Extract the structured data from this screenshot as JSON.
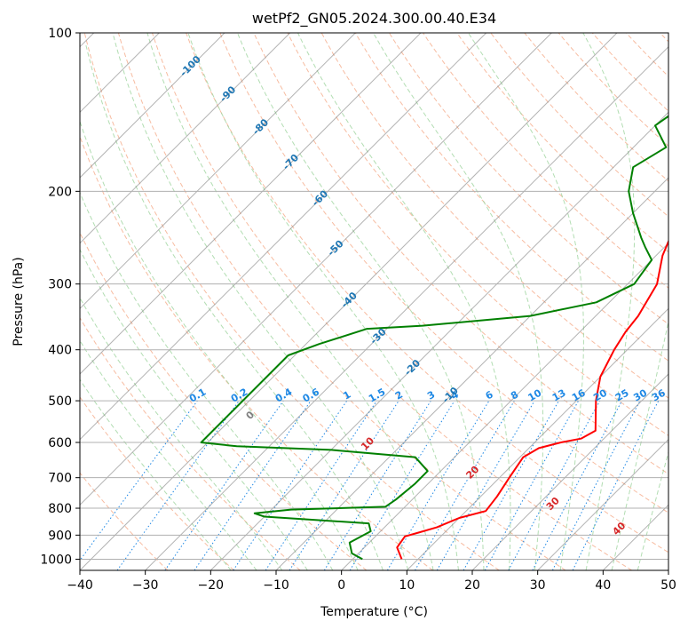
{
  "chart_data": {
    "type": "line",
    "subtype": "skew-T log-P diagram",
    "title": "wetPf2_GN05.2024.300.00.40.E34",
    "xlabel": "Temperature (°C)",
    "ylabel": "Pressure (hPa)",
    "xlim": [
      -40,
      50
    ],
    "ylim": [
      1050,
      100
    ],
    "y_scale": "log",
    "grid": true,
    "x_ticks": [
      "−40",
      "−30",
      "−20",
      "−10",
      "0",
      "10",
      "20",
      "30",
      "40",
      "50"
    ],
    "y_ticks": [
      "100",
      "200",
      "300",
      "400",
      "500",
      "600",
      "700",
      "800",
      "900",
      "1000"
    ],
    "series": [
      {
        "color": "#ff0000",
        "points": [
          [
            7.5,
            1000
          ],
          [
            5,
            950
          ],
          [
            4.5,
            905
          ],
          [
            6,
            890
          ],
          [
            8,
            870
          ],
          [
            10,
            835
          ],
          [
            13,
            810
          ],
          [
            12.5,
            760
          ],
          [
            11.5,
            700
          ],
          [
            10.5,
            640
          ],
          [
            11.5,
            615
          ],
          [
            14,
            600
          ],
          [
            16.5,
            590
          ],
          [
            17.5,
            570
          ],
          [
            13,
            500
          ],
          [
            10,
            450
          ],
          [
            8,
            400
          ],
          [
            7,
            370
          ],
          [
            6.5,
            345
          ],
          [
            4.5,
            300
          ],
          [
            1,
            265
          ],
          [
            -1,
            240
          ],
          [
            -3,
            225
          ],
          [
            -2,
            200
          ],
          [
            0,
            185
          ],
          [
            2,
            170
          ],
          [
            5,
            155
          ],
          [
            9,
            140
          ],
          [
            13,
            125
          ],
          [
            16.5,
            112
          ],
          [
            18.5,
            105
          ],
          [
            20,
            100
          ]
        ]
      },
      {
        "color": "#008000",
        "points": [
          [
            1.5,
            1000
          ],
          [
            -1,
            975
          ],
          [
            -3,
            930
          ],
          [
            -1.5,
            885
          ],
          [
            -3,
            855
          ],
          [
            -20,
            830
          ],
          [
            -22,
            818
          ],
          [
            -17,
            805
          ],
          [
            -3,
            795
          ],
          [
            -2.5,
            770
          ],
          [
            -2,
            720
          ],
          [
            -2,
            680
          ],
          [
            -6,
            640
          ],
          [
            -20,
            620
          ],
          [
            -35,
            610
          ],
          [
            -41,
            600
          ],
          [
            -41,
            410
          ],
          [
            -38,
            390
          ],
          [
            -33,
            365
          ],
          [
            -25,
            360
          ],
          [
            -10,
            345
          ],
          [
            -2,
            325
          ],
          [
            1,
            300
          ],
          [
            0,
            270
          ],
          [
            -3,
            255
          ],
          [
            -5,
            245
          ],
          [
            -10,
            220
          ],
          [
            -14,
            200
          ],
          [
            -17,
            180
          ],
          [
            -15,
            165
          ],
          [
            -20,
            150
          ],
          [
            -19,
            140
          ],
          [
            -17,
            130
          ],
          [
            -13,
            120
          ],
          [
            -10,
            112
          ],
          [
            -6,
            105
          ],
          [
            -3,
            100
          ]
        ]
      }
    ],
    "mixing_ratio_labels": [
      "0.1",
      "0.2",
      "0.4",
      "0.6",
      "1",
      "1.5",
      "2",
      "3",
      "4",
      "6",
      "8",
      "10",
      "13",
      "16",
      "20",
      "25",
      "30",
      "36"
    ],
    "mixing_ratio_values": [
      0.1,
      0.2,
      0.4,
      0.6,
      1,
      1.5,
      2,
      3,
      4,
      6,
      8,
      10,
      13,
      16,
      20,
      25,
      30,
      36
    ],
    "isotherm_labels": [
      "-100",
      "-90",
      "-80",
      "-70",
      "-60",
      "-50",
      "-40",
      "-30",
      "-20",
      "-10"
    ],
    "isotherm_values": [
      -100,
      -90,
      -80,
      -70,
      -60,
      -50,
      -40,
      -30,
      -20,
      -10
    ],
    "moist_adiabat_labels": [
      "0",
      "10",
      "20",
      "30",
      "40"
    ],
    "moist_adiabat_values": [
      0,
      10,
      20,
      30,
      40
    ],
    "colors": {
      "temperature": "#ff0000",
      "dewpoint": "#008000",
      "isotherm": "#808080",
      "isotherm_label": "#1f77b4",
      "dry_adiabat": "#f4a582",
      "moist_adiabat": "#9fd49f",
      "mixing_ratio": "#1e88e5",
      "moist_label_zero": "#808080",
      "moist_label": "#d62728",
      "grid": "#b0b0b0"
    }
  }
}
